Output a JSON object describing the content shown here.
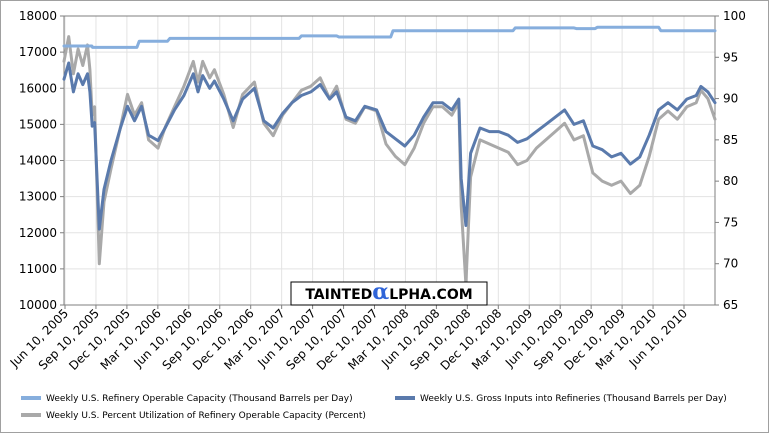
{
  "watermark": {
    "pre": "TAINTED",
    "alpha": "α",
    "post": "LPHA.COM",
    "alpha_color": "#2f64d8"
  },
  "chart_data": {
    "type": "line",
    "y_left": {
      "min": 10000,
      "max": 18000,
      "ticks": [
        10000,
        11000,
        12000,
        13000,
        14000,
        15000,
        16000,
        17000,
        18000
      ]
    },
    "y_right": {
      "min": 65,
      "max": 100,
      "ticks": [
        65,
        70,
        75,
        80,
        85,
        90,
        95,
        100
      ]
    },
    "x_range": [
      "2005-06-10",
      "2010-10-01"
    ],
    "x_ticks": [
      "Jun 10, 2005",
      "Sep 10, 2005",
      "Dec 10, 2005",
      "Mar 10, 2006",
      "Jun 10, 2006",
      "Sep 10, 2006",
      "Dec 10, 2006",
      "Mar 10, 2007",
      "Jun 10, 2007",
      "Sep 10, 2007",
      "Dec 10, 2007",
      "Mar 10, 2008",
      "Jun 10, 2008",
      "Sep 10, 2008",
      "Dec 10, 2008",
      "Mar 10, 2009",
      "Jun 10, 2009",
      "Sep 10, 2009",
      "Dec 10, 2009",
      "Mar 10, 2010",
      "Jun 10, 2010"
    ],
    "grid": true,
    "legend_position": "bottom",
    "series": [
      {
        "name": "Weekly U.S. Refinery Operable Capacity  (Thousand Barrels per Day)",
        "axis": "left",
        "color": "#86aedd",
        "width": 3,
        "points": [
          [
            "2005-06-10",
            17170
          ],
          [
            "2005-09-01",
            17170
          ],
          [
            "2005-09-03",
            17130
          ],
          [
            "2006-01-13",
            17130
          ],
          [
            "2006-01-20",
            17300
          ],
          [
            "2006-04-14",
            17300
          ],
          [
            "2006-04-21",
            17380
          ],
          [
            "2007-05-11",
            17380
          ],
          [
            "2007-05-18",
            17450
          ],
          [
            "2007-08-31",
            17450
          ],
          [
            "2007-09-07",
            17420
          ],
          [
            "2008-02-08",
            17420
          ],
          [
            "2008-02-15",
            17590
          ],
          [
            "2009-02-06",
            17590
          ],
          [
            "2009-02-13",
            17670
          ],
          [
            "2009-08-07",
            17670
          ],
          [
            "2009-08-14",
            17650
          ],
          [
            "2009-10-09",
            17650
          ],
          [
            "2009-10-16",
            17690
          ],
          [
            "2010-04-16",
            17690
          ],
          [
            "2010-04-23",
            17590
          ],
          [
            "2010-10-01",
            17590
          ]
        ]
      },
      {
        "name": "Weekly U.S. Gross Inputs into Refineries  (Thousand Barrels per Day)",
        "axis": "left",
        "color": "#5a7aac",
        "width": 3,
        "points": [
          [
            "2005-06-10",
            16250
          ],
          [
            "2005-06-24",
            16700
          ],
          [
            "2005-07-08",
            15900
          ],
          [
            "2005-07-22",
            16400
          ],
          [
            "2005-08-05",
            16100
          ],
          [
            "2005-08-19",
            16400
          ],
          [
            "2005-08-26",
            15900
          ],
          [
            "2005-09-02",
            14950
          ],
          [
            "2005-09-09",
            15050
          ],
          [
            "2005-09-23",
            12100
          ],
          [
            "2005-10-07",
            13200
          ],
          [
            "2005-10-28",
            14000
          ],
          [
            "2005-11-25",
            14900
          ],
          [
            "2005-12-16",
            15500
          ],
          [
            "2006-01-06",
            15100
          ],
          [
            "2006-01-27",
            15500
          ],
          [
            "2006-02-17",
            14700
          ],
          [
            "2006-03-17",
            14550
          ],
          [
            "2006-04-07",
            14900
          ],
          [
            "2006-05-05",
            15400
          ],
          [
            "2006-06-02",
            15800
          ],
          [
            "2006-06-30",
            16400
          ],
          [
            "2006-07-14",
            15900
          ],
          [
            "2006-07-28",
            16350
          ],
          [
            "2006-08-18",
            16000
          ],
          [
            "2006-09-01",
            16200
          ],
          [
            "2006-09-29",
            15700
          ],
          [
            "2006-10-27",
            15100
          ],
          [
            "2006-11-24",
            15700
          ],
          [
            "2006-12-29",
            16000
          ],
          [
            "2007-01-26",
            15100
          ],
          [
            "2007-02-23",
            14900
          ],
          [
            "2007-03-23",
            15300
          ],
          [
            "2007-04-20",
            15600
          ],
          [
            "2007-05-18",
            15800
          ],
          [
            "2007-06-15",
            15900
          ],
          [
            "2007-07-13",
            16100
          ],
          [
            "2007-08-10",
            15700
          ],
          [
            "2007-08-31",
            15900
          ],
          [
            "2007-09-28",
            15200
          ],
          [
            "2007-10-26",
            15100
          ],
          [
            "2007-11-23",
            15500
          ],
          [
            "2007-12-28",
            15400
          ],
          [
            "2008-01-25",
            14800
          ],
          [
            "2008-02-22",
            14600
          ],
          [
            "2008-03-21",
            14400
          ],
          [
            "2008-04-18",
            14700
          ],
          [
            "2008-05-16",
            15200
          ],
          [
            "2008-06-13",
            15600
          ],
          [
            "2008-07-11",
            15600
          ],
          [
            "2008-08-08",
            15400
          ],
          [
            "2008-08-29",
            15700
          ],
          [
            "2008-09-05",
            13500
          ],
          [
            "2008-09-19",
            12200
          ],
          [
            "2008-10-03",
            14200
          ],
          [
            "2008-10-31",
            14900
          ],
          [
            "2008-11-28",
            14800
          ],
          [
            "2008-12-26",
            14800
          ],
          [
            "2009-01-23",
            14700
          ],
          [
            "2009-02-20",
            14500
          ],
          [
            "2009-03-20",
            14600
          ],
          [
            "2009-04-17",
            14800
          ],
          [
            "2009-05-15",
            15000
          ],
          [
            "2009-06-12",
            15200
          ],
          [
            "2009-07-10",
            15400
          ],
          [
            "2009-08-07",
            15000
          ],
          [
            "2009-09-04",
            15100
          ],
          [
            "2009-10-02",
            14400
          ],
          [
            "2009-10-30",
            14300
          ],
          [
            "2009-11-27",
            14100
          ],
          [
            "2009-12-25",
            14200
          ],
          [
            "2010-01-22",
            13900
          ],
          [
            "2010-02-19",
            14100
          ],
          [
            "2010-03-19",
            14700
          ],
          [
            "2010-04-16",
            15400
          ],
          [
            "2010-05-14",
            15600
          ],
          [
            "2010-06-11",
            15400
          ],
          [
            "2010-07-09",
            15700
          ],
          [
            "2010-08-06",
            15800
          ],
          [
            "2010-08-20",
            16050
          ],
          [
            "2010-09-10",
            15900
          ],
          [
            "2010-10-01",
            15600
          ]
        ]
      },
      {
        "name": "Weekly U.S. Percent Utilization of Refinery Operable Capacity  (Percent)",
        "axis": "right",
        "color": "#a9a9a9",
        "width": 3,
        "points": [
          [
            "2005-06-10",
            94.5
          ],
          [
            "2005-06-24",
            97.5
          ],
          [
            "2005-07-08",
            93
          ],
          [
            "2005-07-22",
            96
          ],
          [
            "2005-08-05",
            94
          ],
          [
            "2005-08-19",
            96.5
          ],
          [
            "2005-08-26",
            93.5
          ],
          [
            "2005-09-02",
            88
          ],
          [
            "2005-09-09",
            89
          ],
          [
            "2005-09-23",
            70
          ],
          [
            "2005-10-07",
            77.5
          ],
          [
            "2005-10-28",
            81.5
          ],
          [
            "2005-11-25",
            86.5
          ],
          [
            "2005-12-16",
            90.5
          ],
          [
            "2006-01-06",
            88
          ],
          [
            "2006-01-27",
            89.5
          ],
          [
            "2006-02-17",
            85
          ],
          [
            "2006-03-17",
            84
          ],
          [
            "2006-04-07",
            86.5
          ],
          [
            "2006-05-05",
            89
          ],
          [
            "2006-06-02",
            91.5
          ],
          [
            "2006-06-30",
            94.5
          ],
          [
            "2006-07-14",
            92
          ],
          [
            "2006-07-28",
            94.5
          ],
          [
            "2006-08-18",
            92.5
          ],
          [
            "2006-09-01",
            93.5
          ],
          [
            "2006-09-29",
            90.5
          ],
          [
            "2006-10-27",
            86.5
          ],
          [
            "2006-11-24",
            90.5
          ],
          [
            "2006-12-29",
            92
          ],
          [
            "2007-01-26",
            87
          ],
          [
            "2007-02-23",
            85.5
          ],
          [
            "2007-03-23",
            88
          ],
          [
            "2007-04-20",
            89.5
          ],
          [
            "2007-05-18",
            91
          ],
          [
            "2007-06-15",
            91.5
          ],
          [
            "2007-07-13",
            92.5
          ],
          [
            "2007-08-10",
            90
          ],
          [
            "2007-08-31",
            91.5
          ],
          [
            "2007-09-28",
            87.5
          ],
          [
            "2007-10-26",
            87
          ],
          [
            "2007-11-23",
            89
          ],
          [
            "2007-12-28",
            88.5
          ],
          [
            "2008-01-25",
            84.5
          ],
          [
            "2008-02-22",
            83
          ],
          [
            "2008-03-21",
            82
          ],
          [
            "2008-04-18",
            84
          ],
          [
            "2008-05-16",
            87
          ],
          [
            "2008-06-13",
            89
          ],
          [
            "2008-07-11",
            89
          ],
          [
            "2008-08-08",
            88
          ],
          [
            "2008-08-29",
            89.5
          ],
          [
            "2008-09-05",
            77
          ],
          [
            "2008-09-19",
            67.5
          ],
          [
            "2008-10-03",
            80.5
          ],
          [
            "2008-10-31",
            85
          ],
          [
            "2008-11-28",
            84.5
          ],
          [
            "2008-12-26",
            84
          ],
          [
            "2009-01-23",
            83.5
          ],
          [
            "2009-02-20",
            82
          ],
          [
            "2009-03-20",
            82.5
          ],
          [
            "2009-04-17",
            84
          ],
          [
            "2009-05-15",
            85
          ],
          [
            "2009-06-12",
            86
          ],
          [
            "2009-07-10",
            87
          ],
          [
            "2009-08-07",
            85
          ],
          [
            "2009-09-04",
            85.5
          ],
          [
            "2009-10-02",
            81
          ],
          [
            "2009-10-30",
            80
          ],
          [
            "2009-11-27",
            79.5
          ],
          [
            "2009-12-25",
            80
          ],
          [
            "2010-01-22",
            78.5
          ],
          [
            "2010-02-19",
            79.5
          ],
          [
            "2010-03-19",
            83
          ],
          [
            "2010-04-16",
            87.5
          ],
          [
            "2010-05-14",
            88.5
          ],
          [
            "2010-06-11",
            87.5
          ],
          [
            "2010-07-09",
            89
          ],
          [
            "2010-08-06",
            89.5
          ],
          [
            "2010-08-20",
            91
          ],
          [
            "2010-09-10",
            90
          ],
          [
            "2010-10-01",
            87.5
          ]
        ]
      }
    ]
  }
}
